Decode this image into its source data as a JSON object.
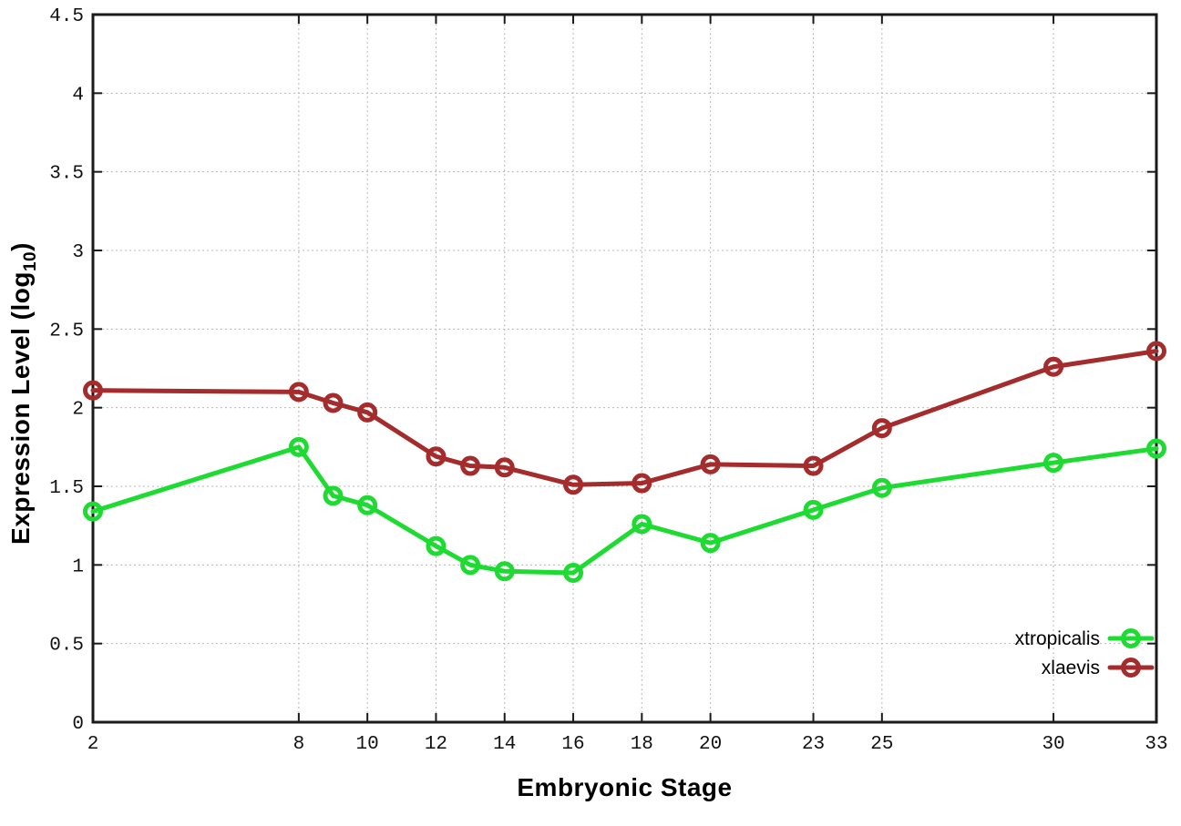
{
  "chart_data": {
    "type": "line",
    "title": "",
    "xlabel": "Embryonic Stage",
    "ylabel_prefix": "Expression Level (log",
    "ylabel_sub": "10",
    "ylabel_suffix": ")",
    "x": [
      2,
      8,
      9,
      10,
      12,
      13,
      14,
      16,
      18,
      20,
      23,
      25,
      30,
      33
    ],
    "xticks": [
      2,
      8,
      10,
      12,
      14,
      16,
      18,
      20,
      23,
      25,
      30,
      33
    ],
    "yticks": [
      0,
      0.5,
      1,
      1.5,
      2,
      2.5,
      3,
      3.5,
      4,
      4.5
    ],
    "xlim": [
      2,
      33
    ],
    "ylim": [
      0,
      4.5
    ],
    "grid": true,
    "legend_position": "bottom-right",
    "series": [
      {
        "name": "xtropicalis",
        "color": "#1edb32",
        "values": [
          1.34,
          1.75,
          1.44,
          1.38,
          1.12,
          1.0,
          0.96,
          0.95,
          1.26,
          1.14,
          1.35,
          1.49,
          1.65,
          1.74
        ]
      },
      {
        "name": "xlaevis",
        "color": "#a42c2c",
        "values": [
          2.11,
          2.1,
          2.03,
          1.97,
          1.69,
          1.63,
          1.62,
          1.51,
          1.52,
          1.64,
          1.63,
          1.87,
          2.26,
          2.36
        ]
      }
    ],
    "colors": {
      "grid": "#b8b8b8",
      "border": "#1a1a1a",
      "text": "#000000"
    }
  }
}
